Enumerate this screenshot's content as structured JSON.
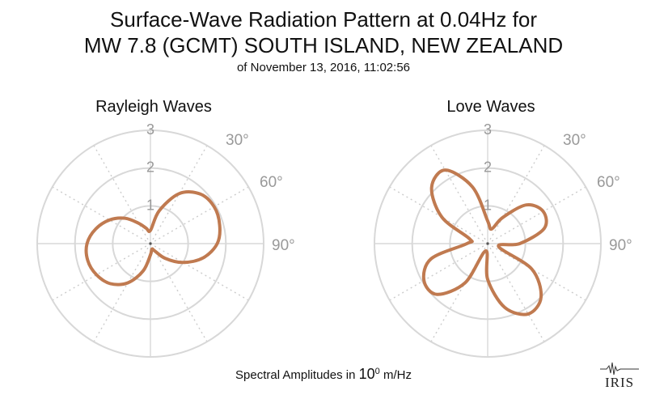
{
  "title_line1": "Surface-Wave Radiation Pattern at 0.04Hz for",
  "title_line2": "MW 7.8 (GCMT) SOUTH ISLAND, NEW ZEALAND",
  "subtitle": "of November 13, 2016, 11:02:56",
  "footer": {
    "prefix": "Spectral Amplitudes in ",
    "base": "10",
    "exponent": "0",
    "unit": " m/Hz"
  },
  "logo_text": "IRIS",
  "colors": {
    "pattern": "#c07a50",
    "grid": "#d8d8d8",
    "grid_dotted": "#cccccc",
    "tick_label": "#999999"
  },
  "chart_data": [
    {
      "type": "polar-line",
      "title": "Rayleigh Waves",
      "r_ticks": [
        "1",
        "2",
        "3"
      ],
      "r_max": 3,
      "theta_ticks": [
        "30°",
        "60°",
        "90°"
      ],
      "theta_zero": "north",
      "theta_direction": "clockwise",
      "grid": true,
      "theta_deg": [
        0,
        15,
        30,
        45,
        60,
        75,
        90,
        105,
        120,
        135,
        150,
        165,
        180,
        195,
        210,
        225,
        240,
        255,
        270,
        285,
        300,
        315,
        330,
        345
      ],
      "r": [
        0.35,
        0.9,
        1.53,
        1.86,
        1.95,
        1.9,
        1.77,
        1.45,
        1.0,
        0.55,
        0.22,
        0.15,
        0.3,
        0.75,
        1.2,
        1.5,
        1.65,
        1.72,
        1.68,
        1.5,
        1.25,
        0.95,
        0.62,
        0.42
      ]
    },
    {
      "type": "polar-line",
      "title": "Love Waves",
      "r_ticks": [
        "1",
        "2",
        "3"
      ],
      "r_max": 3,
      "theta_ticks": [
        "30°",
        "60°",
        "90°"
      ],
      "theta_zero": "north",
      "theta_direction": "clockwise",
      "grid": true,
      "theta_deg": [
        0,
        15,
        30,
        45,
        60,
        75,
        90,
        105,
        120,
        135,
        150,
        165,
        180,
        195,
        210,
        225,
        240,
        255,
        270,
        285,
        300,
        315,
        330,
        345
      ],
      "r": [
        0.6,
        0.4,
        0.8,
        1.45,
        1.7,
        1.55,
        0.85,
        0.3,
        1.35,
        2.0,
        2.15,
        1.75,
        0.95,
        0.2,
        1.2,
        1.9,
        1.95,
        1.55,
        0.55,
        0.5,
        1.4,
        2.1,
        2.25,
        1.55
      ]
    }
  ]
}
